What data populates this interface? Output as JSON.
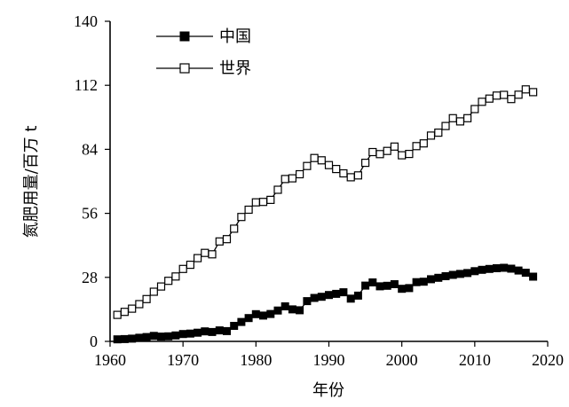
{
  "chart_data": {
    "type": "line",
    "title": "",
    "xlabel": "年份",
    "ylabel": "氮肥用量/百万 t",
    "xlim": [
      1960,
      2020
    ],
    "ylim": [
      0,
      140
    ],
    "x_ticks": [
      "1960",
      "1970",
      "1980",
      "1990",
      "2000",
      "2010",
      "2020"
    ],
    "y_ticks": [
      "0",
      "28",
      "56",
      "84",
      "112",
      "140"
    ],
    "grid": false,
    "legend_position": "top-left",
    "x": [
      1961,
      1962,
      1963,
      1964,
      1965,
      1966,
      1967,
      1968,
      1969,
      1970,
      1971,
      1972,
      1973,
      1974,
      1975,
      1976,
      1977,
      1978,
      1979,
      1980,
      1981,
      1982,
      1983,
      1984,
      1985,
      1986,
      1987,
      1988,
      1989,
      1990,
      1991,
      1992,
      1993,
      1994,
      1995,
      1996,
      1997,
      1998,
      1999,
      2000,
      2001,
      2002,
      2003,
      2004,
      2005,
      2006,
      2007,
      2008,
      2009,
      2010,
      2011,
      2012,
      2013,
      2014,
      2015,
      2016,
      2017,
      2018
    ],
    "series": [
      {
        "name": "中国",
        "marker": "filled-square",
        "color": "#000000",
        "values": [
          0.9,
          1.0,
          1.2,
          1.6,
          1.9,
          2.4,
          2.1,
          2.2,
          2.6,
          3.2,
          3.4,
          3.8,
          4.4,
          4.1,
          4.8,
          4.5,
          6.8,
          8.5,
          10.2,
          11.9,
          11.3,
          12.0,
          13.5,
          15.3,
          14.0,
          13.6,
          17.6,
          19.0,
          19.5,
          20.3,
          20.8,
          21.5,
          18.7,
          20.0,
          24.4,
          25.8,
          24.1,
          24.3,
          25.0,
          23.0,
          23.3,
          25.9,
          26.1,
          27.2,
          27.8,
          28.5,
          29.1,
          29.5,
          29.9,
          30.7,
          31.3,
          31.7,
          32.0,
          32.2,
          31.8,
          31.0,
          30.0,
          28.3
        ]
      },
      {
        "name": "世界",
        "marker": "hollow-square",
        "color": "#000000",
        "values": [
          11.6,
          12.9,
          14.3,
          16.3,
          18.5,
          21.7,
          24.0,
          26.5,
          28.4,
          31.7,
          33.5,
          36.4,
          38.7,
          38.1,
          43.7,
          44.7,
          49.3,
          54.4,
          57.6,
          60.8,
          61.0,
          61.9,
          66.3,
          71.0,
          71.3,
          73.1,
          76.7,
          80.2,
          79.2,
          77.1,
          75.4,
          73.5,
          71.8,
          72.6,
          78.1,
          82.8,
          81.9,
          83.3,
          85.2,
          81.4,
          82.0,
          85.4,
          86.6,
          90.0,
          91.3,
          94.2,
          97.6,
          96.2,
          97.6,
          101.6,
          104.8,
          106.2,
          107.5,
          107.8,
          106.0,
          107.9,
          110.2,
          109.0
        ]
      }
    ]
  }
}
